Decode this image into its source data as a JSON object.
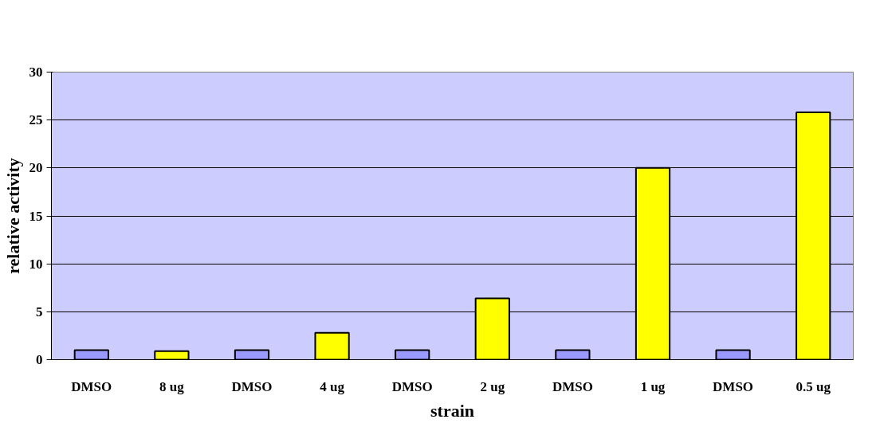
{
  "chart_data": {
    "type": "bar",
    "xlabel": "strain",
    "ylabel": "relative activity",
    "categories": [
      "DMSO",
      "8 ug",
      "DMSO",
      "4 ug",
      "DMSO",
      "2 ug",
      "DMSO",
      "1 ug",
      "DMSO",
      "0.5 ug"
    ],
    "values": [
      1,
      0.9,
      1,
      2.8,
      1,
      6.4,
      1,
      20,
      1,
      25.8
    ],
    "colors": [
      "#9999ff",
      "#ffff00",
      "#9999ff",
      "#ffff00",
      "#9999ff",
      "#ffff00",
      "#9999ff",
      "#ffff00",
      "#9999ff",
      "#ffff00"
    ],
    "ylim": [
      0,
      30
    ],
    "yticks": [
      0,
      5,
      10,
      15,
      20,
      25,
      30
    ],
    "grid": "y"
  }
}
